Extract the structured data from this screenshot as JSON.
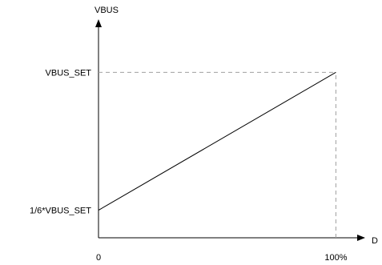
{
  "chart_data": {
    "type": "line",
    "xlabel": "D",
    "ylabel": "VBUS",
    "x_ticks": [
      {
        "value": 0,
        "label": "0"
      },
      {
        "value": 100,
        "label": "100%"
      }
    ],
    "y_ticks": [
      {
        "value": 0.1667,
        "label": "1/6*VBUS_SET"
      },
      {
        "value": 1,
        "label": "VBUS_SET"
      }
    ],
    "xlim": [
      0,
      112
    ],
    "ylim": [
      0,
      1.2
    ],
    "series": [
      {
        "x": [
          0,
          100
        ],
        "y": [
          0.1667,
          1
        ]
      }
    ],
    "reference_lines": [
      {
        "type": "horizontal",
        "y": 1,
        "x_from": 0,
        "x_to": 100,
        "style": "dashed"
      },
      {
        "type": "vertical",
        "x": 100,
        "y_from": 0,
        "y_to": 1,
        "style": "dashed"
      }
    ],
    "grid": false,
    "legend": "none",
    "colors": {
      "line": "#000000",
      "axis": "#000000",
      "dashed": "#a0a0a0"
    }
  }
}
